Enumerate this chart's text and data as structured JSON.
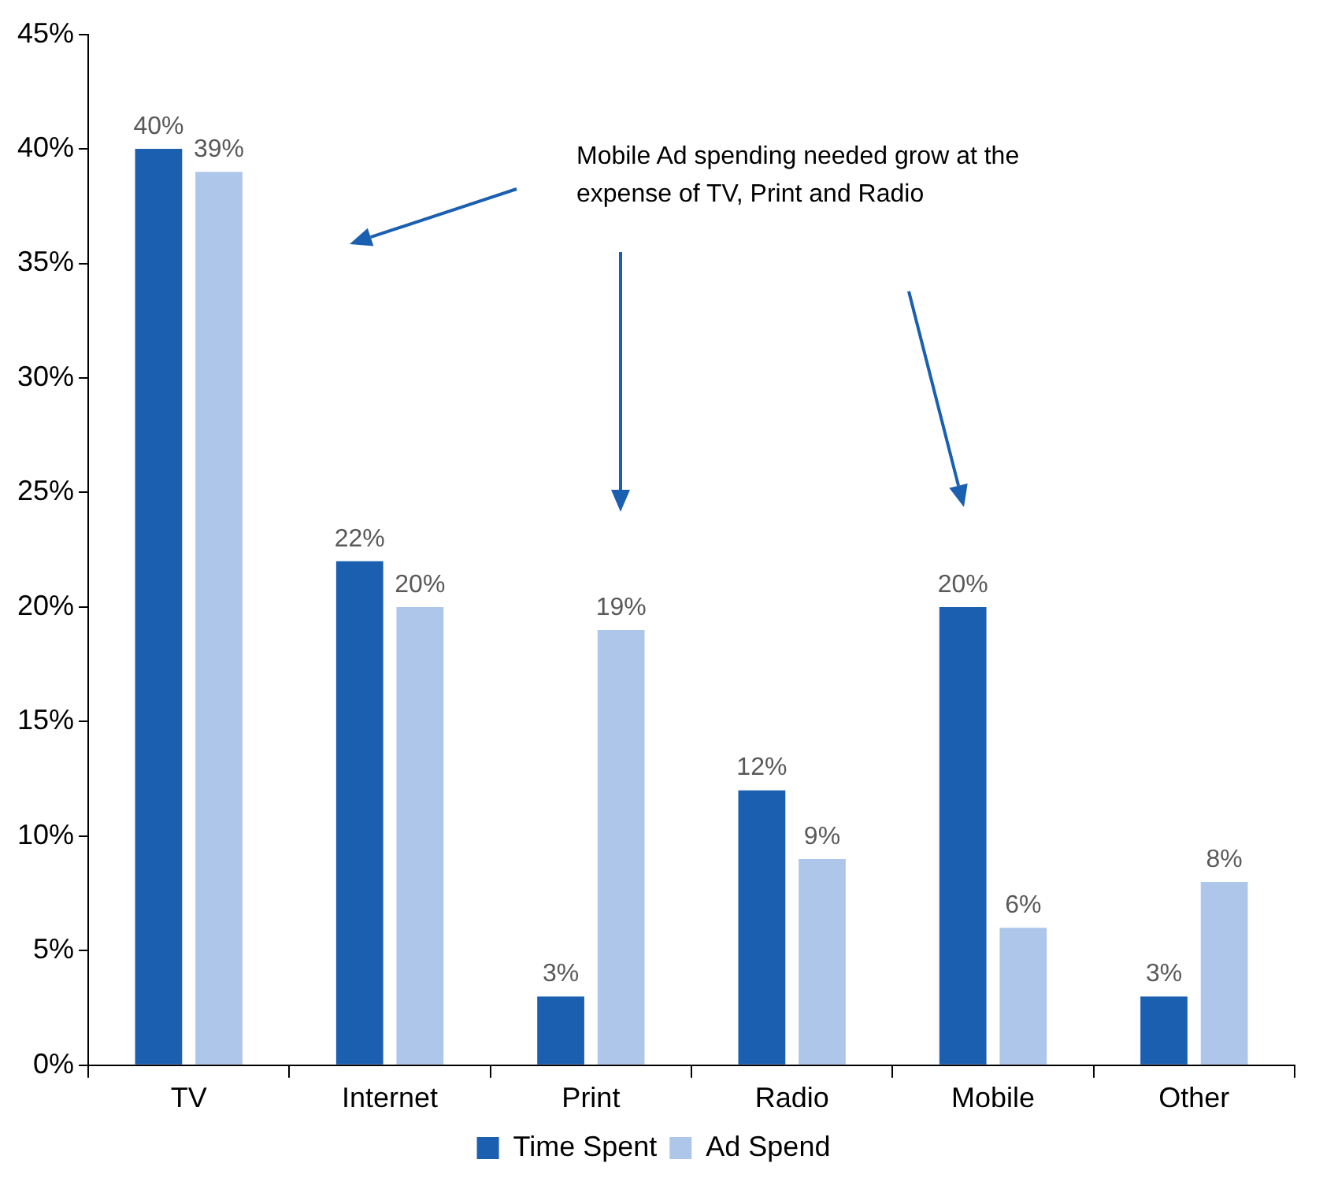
{
  "chart_data": {
    "type": "bar",
    "categories": [
      "TV",
      "Internet",
      "Print",
      "Radio",
      "Mobile",
      "Other"
    ],
    "series": [
      {
        "name": "Time Spent",
        "color": "#1a5fb0",
        "values": [
          40,
          22,
          3,
          12,
          20,
          3
        ],
        "value_labels": [
          "40%",
          "22%",
          "3%",
          "12%",
          "20%",
          "3%"
        ]
      },
      {
        "name": "Ad Spend",
        "color": "#aec6ea",
        "values": [
          39,
          20,
          19,
          9,
          6,
          8
        ],
        "value_labels": [
          "39%",
          "20%",
          "19%",
          "9%",
          "6%",
          "8%"
        ]
      }
    ],
    "ylim": [
      0,
      45
    ],
    "yticks": [
      {
        "value": 0,
        "label": "0%"
      },
      {
        "value": 5,
        "label": "5%"
      },
      {
        "value": 10,
        "label": "10%"
      },
      {
        "value": 15,
        "label": "15%"
      },
      {
        "value": 20,
        "label": "20%"
      },
      {
        "value": 25,
        "label": "25%"
      },
      {
        "value": 30,
        "label": "30%"
      },
      {
        "value": 35,
        "label": "35%"
      },
      {
        "value": 40,
        "label": "40%"
      },
      {
        "value": 45,
        "label": "45%"
      }
    ],
    "grid": false,
    "legend": "bottom",
    "annotations": [
      "Mobile Ad spending needed grow at the expense of TV, Print and Radio"
    ]
  }
}
